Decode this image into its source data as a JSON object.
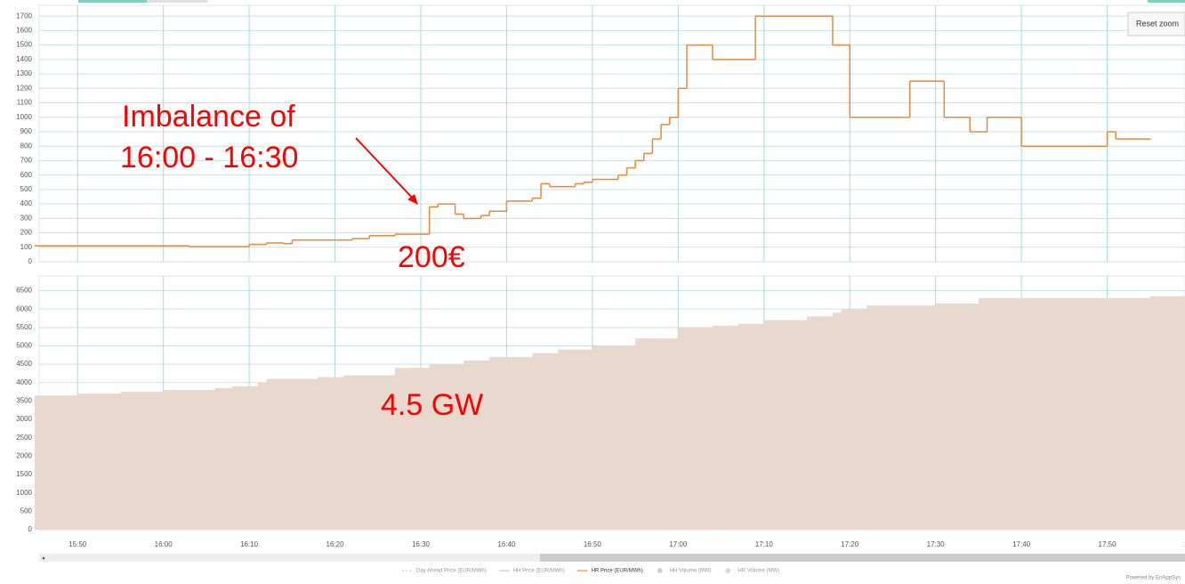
{
  "reset_button": "Reset zoom",
  "credit": "Powered by EnAppSys",
  "legend_extra": [
    {
      "name": "Day Ahead Price (EUR/MWh)",
      "color": "#c8c8c8",
      "style": "dashed"
    },
    {
      "name": "HH Price (EUR/MWh)",
      "color": "#c8c8c8",
      "style": "line"
    },
    {
      "name": "HH Volume (MW)",
      "color": "#d0d0d0",
      "style": "dot"
    }
  ],
  "chart_data": [
    {
      "type": "line",
      "step": true,
      "series": [
        {
          "name": "HR Price (EUR/MWh)",
          "color": "#e8883a",
          "x": [
            "15:45",
            "16:03",
            "16:10",
            "16:12",
            "16:14",
            "16:15",
            "16:22",
            "16:24",
            "16:27",
            "16:31",
            "16:32",
            "16:34",
            "16:35",
            "16:37",
            "16:38",
            "16:40",
            "16:43",
            "16:44",
            "16:45",
            "16:48",
            "16:49",
            "16:50",
            "16:53",
            "16:54",
            "16:55",
            "16:56",
            "16:57",
            "16:58",
            "16:59",
            "17:00",
            "17:01",
            "17:04",
            "17:09",
            "17:18",
            "17:20",
            "17:27",
            "17:31",
            "17:34",
            "17:36",
            "17:40",
            "17:50",
            "17:51",
            "17:55"
          ],
          "values": [
            110,
            105,
            120,
            130,
            125,
            150,
            160,
            180,
            190,
            380,
            400,
            330,
            300,
            320,
            350,
            420,
            440,
            540,
            520,
            540,
            550,
            570,
            600,
            650,
            700,
            750,
            850,
            950,
            1000,
            1200,
            1500,
            1400,
            1700,
            1500,
            1000,
            1250,
            1000,
            900,
            1000,
            800,
            900,
            850,
            850
          ]
        }
      ],
      "ylim": [
        0,
        1775
      ],
      "yticks": [
        0,
        100,
        200,
        300,
        400,
        500,
        600,
        700,
        800,
        900,
        1000,
        1100,
        1200,
        1300,
        1400,
        1500,
        1600,
        1700
      ],
      "grid": true,
      "annotations": [
        "Imbalance of",
        "16:00 - 16:30",
        "200€"
      ]
    },
    {
      "type": "area",
      "step": true,
      "series": [
        {
          "name": "HR Volume (MW)",
          "color": "#e8d8cd",
          "x": [
            "15:45",
            "15:50",
            "15:55",
            "16:00",
            "16:06",
            "16:08",
            "16:11",
            "16:12",
            "16:18",
            "16:21",
            "16:27",
            "16:31",
            "16:35",
            "16:38",
            "16:43",
            "16:46",
            "16:50",
            "16:55",
            "17:00",
            "17:04",
            "17:07",
            "17:10",
            "17:15",
            "17:18",
            "17:19",
            "17:22",
            "17:30",
            "17:35",
            "17:55"
          ],
          "values": [
            3650,
            3700,
            3750,
            3800,
            3850,
            3900,
            4000,
            4100,
            4150,
            4200,
            4400,
            4500,
            4600,
            4700,
            4800,
            4900,
            5000,
            5200,
            5500,
            5550,
            5600,
            5700,
            5800,
            5900,
            6000,
            6100,
            6150,
            6300,
            6350
          ]
        }
      ],
      "ylim": [
        0,
        6900
      ],
      "yticks": [
        0,
        500,
        1000,
        1500,
        2000,
        2500,
        3000,
        3500,
        4000,
        4500,
        5000,
        5500,
        6000,
        6500
      ],
      "xlim": [
        "15:45",
        "18:00"
      ],
      "xticks": [
        "15:50",
        "16:00",
        "16:10",
        "16:20",
        "16:30",
        "16:40",
        "16:50",
        "17:00",
        "17:10",
        "17:20",
        "17:30",
        "17:40",
        "17:50",
        "18:00"
      ],
      "grid": true,
      "annotations": [
        "4.5 GW"
      ]
    }
  ]
}
